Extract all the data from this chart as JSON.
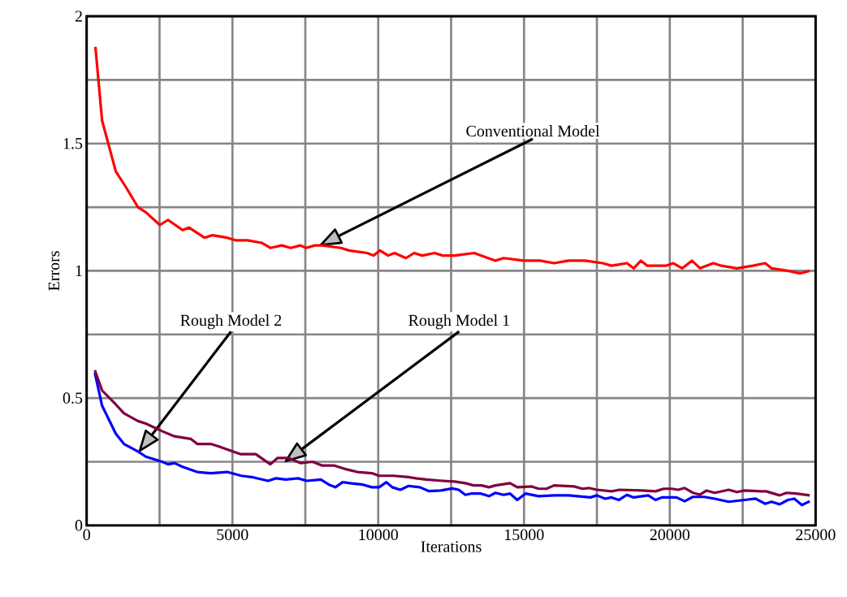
{
  "chart_data": {
    "type": "line",
    "xlabel": "Iterations",
    "ylabel": "Errors",
    "xlim": [
      0,
      25000
    ],
    "ylim": [
      0,
      2
    ],
    "xticks": [
      0,
      {
        "value": 2500,
        "label": null
      },
      5000,
      {
        "value": 7500,
        "label": null
      },
      10000,
      {
        "value": 12500,
        "label": null
      },
      15000,
      {
        "value": 17500,
        "label": null
      },
      20000,
      {
        "value": 22500,
        "label": null
      },
      25000
    ],
    "yticks": [
      0,
      {
        "value": 0.25,
        "label": null
      },
      0.5,
      {
        "value": 0.75,
        "label": null
      },
      1,
      {
        "value": 1.25,
        "label": null
      },
      1.5,
      {
        "value": 1.75,
        "label": null
      },
      2
    ],
    "grid": true,
    "marker": "none",
    "line_style": "solid",
    "annotations": [
      "Conventional Model",
      "Rough Model 2",
      "Rough Model 1"
    ],
    "series": [
      {
        "color": "#ff0000",
        "x": [
          300,
          530,
          1000,
          1340,
          1760,
          2030,
          2510,
          2790,
          3290,
          3510,
          4040,
          4320,
          4820,
          5100,
          5520,
          6000,
          6300,
          6690,
          7000,
          7330,
          7520,
          7830,
          8080,
          8720,
          9000,
          9620,
          9840,
          10060,
          10340,
          10560,
          10950,
          11230,
          11510,
          11930,
          12210,
          12620,
          13290,
          14020,
          14300,
          14990,
          15550,
          16030,
          16530,
          17080,
          17700,
          18000,
          18530,
          18760,
          19010,
          19230,
          19870,
          20120,
          20430,
          20760,
          21040,
          21490,
          21770,
          22300,
          22850,
          23270,
          23490,
          24050,
          24470,
          24800
        ],
        "values": [
          1.88,
          1.59,
          1.39,
          1.33,
          1.25,
          1.23,
          1.18,
          1.2,
          1.16,
          1.17,
          1.13,
          1.14,
          1.13,
          1.12,
          1.12,
          1.11,
          1.09,
          1.1,
          1.09,
          1.1,
          1.09,
          1.1,
          1.1,
          1.09,
          1.08,
          1.07,
          1.06,
          1.08,
          1.06,
          1.07,
          1.05,
          1.07,
          1.06,
          1.07,
          1.06,
          1.06,
          1.07,
          1.04,
          1.05,
          1.04,
          1.04,
          1.03,
          1.04,
          1.04,
          1.03,
          1.02,
          1.03,
          1.01,
          1.04,
          1.02,
          1.02,
          1.03,
          1.01,
          1.04,
          1.01,
          1.03,
          1.02,
          1.01,
          1.02,
          1.03,
          1.01,
          1.0,
          0.99,
          1.0
        ]
      },
      {
        "color": "#0000ff",
        "x": [
          280,
          530,
          1000,
          1280,
          1760,
          2030,
          2590,
          2790,
          3010,
          3290,
          3790,
          4260,
          4820,
          5300,
          5660,
          6220,
          6490,
          6830,
          7250,
          7550,
          8030,
          8310,
          8530,
          8780,
          9090,
          9480,
          9780,
          10030,
          10280,
          10480,
          10760,
          11040,
          11430,
          11730,
          12150,
          12540,
          12760,
          12990,
          13180,
          13520,
          13800,
          14020,
          14300,
          14520,
          14770,
          15050,
          15500,
          16050,
          16530,
          17280,
          17500,
          17780,
          18000,
          18250,
          18530,
          18760,
          19260,
          19510,
          19730,
          20230,
          20510,
          20790,
          21180,
          21540,
          22020,
          22570,
          22940,
          23270,
          23490,
          23770,
          24050,
          24270,
          24530,
          24800
        ],
        "values": [
          0.6,
          0.47,
          0.36,
          0.32,
          0.29,
          0.27,
          0.25,
          0.24,
          0.245,
          0.23,
          0.21,
          0.205,
          0.21,
          0.195,
          0.19,
          0.175,
          0.185,
          0.18,
          0.185,
          0.175,
          0.18,
          0.16,
          0.15,
          0.17,
          0.165,
          0.16,
          0.15,
          0.15,
          0.17,
          0.15,
          0.14,
          0.155,
          0.15,
          0.135,
          0.137,
          0.145,
          0.14,
          0.12,
          0.125,
          0.125,
          0.115,
          0.128,
          0.12,
          0.125,
          0.1,
          0.125,
          0.115,
          0.118,
          0.118,
          0.11,
          0.118,
          0.105,
          0.11,
          0.1,
          0.12,
          0.11,
          0.118,
          0.1,
          0.11,
          0.11,
          0.095,
          0.112,
          0.112,
          0.105,
          0.093,
          0.1,
          0.105,
          0.085,
          0.093,
          0.083,
          0.1,
          0.105,
          0.08,
          0.095
        ]
      },
      {
        "color": "#800040",
        "x": [
          280,
          530,
          1000,
          1280,
          1760,
          2030,
          2590,
          3010,
          3570,
          3790,
          4260,
          4540,
          4910,
          5270,
          5800,
          6300,
          6550,
          6910,
          7330,
          7750,
          8080,
          8500,
          8920,
          9280,
          9780,
          10030,
          10530,
          11040,
          11290,
          11650,
          12210,
          12620,
          12990,
          13270,
          13540,
          13800,
          14020,
          14520,
          14770,
          15270,
          15500,
          15770,
          16030,
          16720,
          17000,
          17220,
          17500,
          18000,
          18280,
          19040,
          19510,
          19790,
          20070,
          20290,
          20510,
          20790,
          21040,
          21260,
          21540,
          22020,
          22300,
          22570,
          23130,
          23300,
          23770,
          24000,
          24330,
          24800
        ],
        "values": [
          0.61,
          0.53,
          0.475,
          0.44,
          0.41,
          0.4,
          0.37,
          0.35,
          0.34,
          0.32,
          0.32,
          0.31,
          0.295,
          0.28,
          0.28,
          0.24,
          0.265,
          0.265,
          0.245,
          0.25,
          0.235,
          0.235,
          0.22,
          0.21,
          0.205,
          0.195,
          0.195,
          0.19,
          0.185,
          0.18,
          0.175,
          0.172,
          0.166,
          0.157,
          0.157,
          0.15,
          0.157,
          0.166,
          0.15,
          0.153,
          0.144,
          0.144,
          0.157,
          0.153,
          0.144,
          0.147,
          0.14,
          0.134,
          0.14,
          0.137,
          0.134,
          0.144,
          0.144,
          0.14,
          0.147,
          0.128,
          0.121,
          0.137,
          0.128,
          0.14,
          0.131,
          0.137,
          0.134,
          0.134,
          0.118,
          0.128,
          0.125,
          0.118
        ]
      }
    ]
  }
}
